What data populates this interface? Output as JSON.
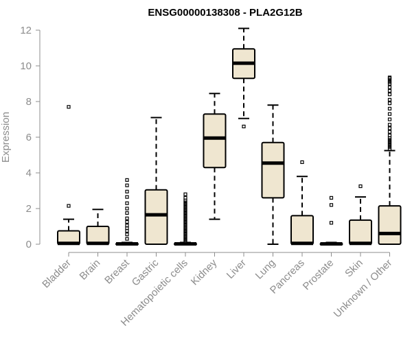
{
  "chart_data": {
    "type": "boxplot",
    "title": "ENSG00000138308 - PLA2G12B",
    "xlabel": "",
    "ylabel": "Expression",
    "ylim": [
      0,
      12
    ],
    "yticks": [
      0,
      2,
      4,
      6,
      8,
      10,
      12
    ],
    "grid": false,
    "legend": "none",
    "colors": {
      "box_fill": "#efe6d0",
      "box_stroke": "#000000",
      "median": "#000000",
      "axis": "#8c8c8c",
      "title": "#000000"
    },
    "categories": [
      "Bladder",
      "Brain",
      "Breast",
      "Gastric",
      "Hematopoietic cells",
      "Kidney",
      "Liver",
      "Lung",
      "Pancreas",
      "Prostate",
      "Skin",
      "Unknown / Other"
    ],
    "boxes": [
      {
        "category": "Bladder",
        "whisker_low": 0,
        "q1": 0,
        "median": 0.05,
        "q3": 0.75,
        "whisker_high": 1.4,
        "outliers": [
          2.15,
          7.7
        ]
      },
      {
        "category": "Brain",
        "whisker_low": 0,
        "q1": 0,
        "median": 0.05,
        "q3": 1.0,
        "whisker_high": 1.95,
        "outliers": []
      },
      {
        "category": "Breast",
        "whisker_low": 0,
        "q1": 0,
        "median": 0.02,
        "q3": 0.05,
        "whisker_high": 0.1,
        "outliers": [
          0.3,
          0.55,
          0.75,
          0.9,
          1.05,
          1.25,
          1.45,
          1.75,
          2.0,
          2.3,
          2.65,
          2.95,
          3.3,
          3.6
        ]
      },
      {
        "category": "Gastric",
        "whisker_low": 0,
        "q1": 0,
        "median": 1.65,
        "q3": 3.05,
        "whisker_high": 7.1,
        "outliers": []
      },
      {
        "category": "Hematopoietic cells",
        "whisker_low": 0,
        "q1": 0,
        "median": 0.02,
        "q3": 0.05,
        "whisker_high": 0.1,
        "outliers": [
          0.15,
          0.25,
          0.35,
          0.45,
          0.55,
          0.65,
          0.75,
          0.85,
          0.95,
          1.05,
          1.15,
          1.25,
          1.35,
          1.45,
          1.55,
          1.65,
          1.75,
          1.85,
          1.95,
          2.05,
          2.15,
          2.25,
          2.35,
          2.45,
          2.6,
          2.8
        ]
      },
      {
        "category": "Kidney",
        "whisker_low": 1.4,
        "q1": 4.3,
        "median": 5.95,
        "q3": 7.3,
        "whisker_high": 8.45,
        "outliers": []
      },
      {
        "category": "Liver",
        "whisker_low": 7.05,
        "q1": 9.3,
        "median": 10.15,
        "q3": 10.95,
        "whisker_high": 12.1,
        "outliers": [
          6.6
        ]
      },
      {
        "category": "Lung",
        "whisker_low": 0,
        "q1": 2.6,
        "median": 4.55,
        "q3": 5.7,
        "whisker_high": 7.8,
        "outliers": []
      },
      {
        "category": "Pancreas",
        "whisker_low": 0,
        "q1": 0,
        "median": 0.05,
        "q3": 1.6,
        "whisker_high": 3.8,
        "outliers": [
          4.6
        ]
      },
      {
        "category": "Prostate",
        "whisker_low": 0,
        "q1": 0,
        "median": 0.02,
        "q3": 0.05,
        "whisker_high": 0.1,
        "outliers": [
          1.2,
          2.2,
          2.6
        ]
      },
      {
        "category": "Skin",
        "whisker_low": 0,
        "q1": 0,
        "median": 0.05,
        "q3": 1.35,
        "whisker_high": 2.65,
        "outliers": [
          3.25
        ]
      },
      {
        "category": "Unknown / Other",
        "whisker_low": 0,
        "q1": 0,
        "median": 0.6,
        "q3": 2.15,
        "whisker_high": 5.25,
        "outliers": [
          5.35,
          5.45,
          5.55,
          5.65,
          5.75,
          5.85,
          5.95,
          6.1,
          6.3,
          6.5,
          6.7,
          7.0,
          7.3,
          7.6,
          7.9,
          8.1,
          8.4,
          8.6,
          8.8,
          9.0,
          9.1,
          9.2,
          9.3,
          9.35
        ]
      }
    ]
  }
}
